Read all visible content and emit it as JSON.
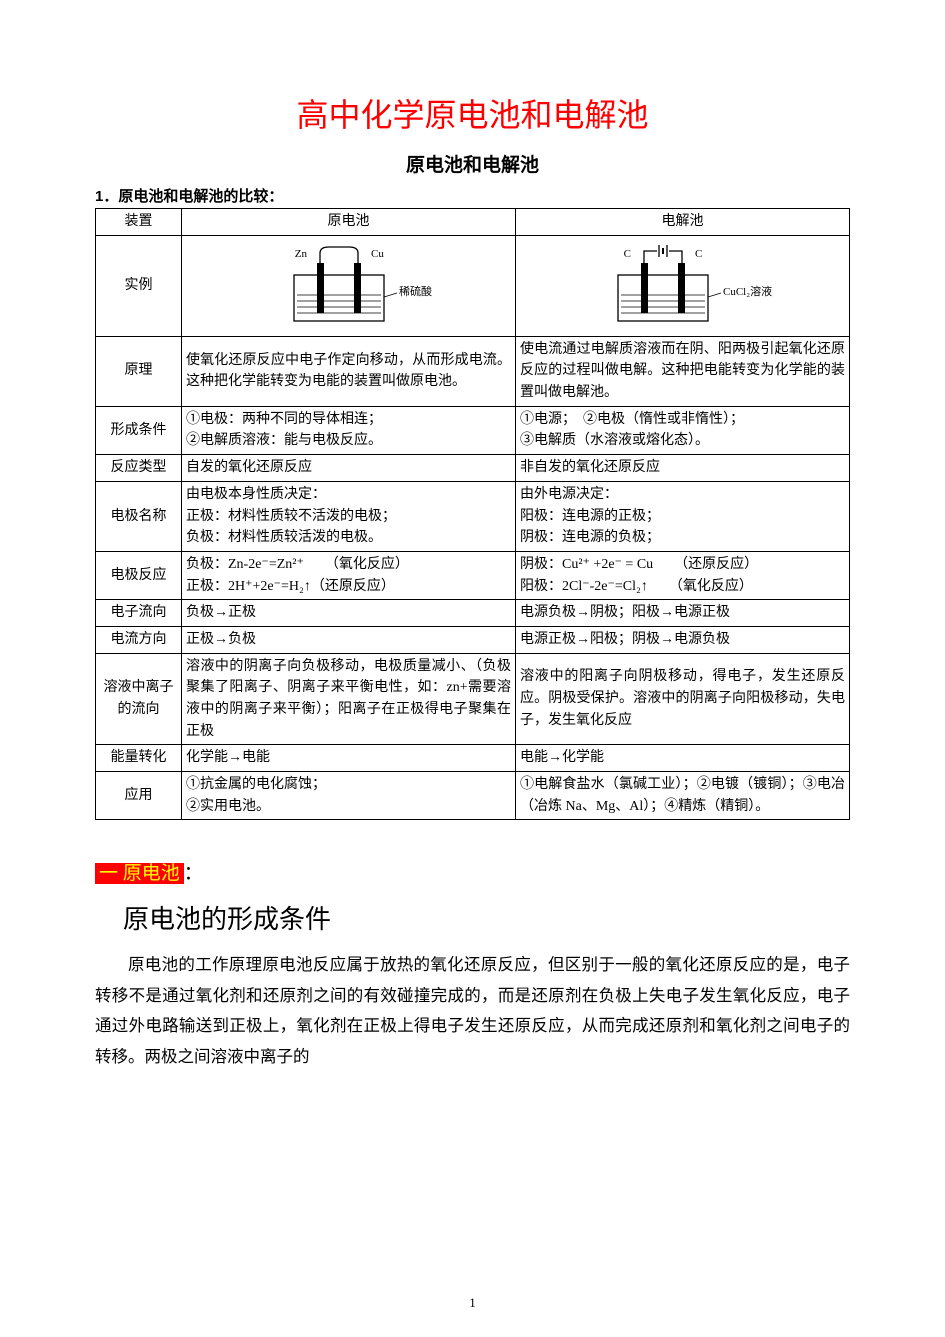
{
  "colors": {
    "title_red": "#ff0000",
    "highlight_bg": "#ff0000",
    "highlight_text": "#ffff00",
    "text": "#000000",
    "bg": "#ffffff",
    "border": "#000000"
  },
  "typography": {
    "title_fontsize": 32,
    "subtitle_fontsize": 19,
    "table_fontsize": 14,
    "body_fontsize": 16.5,
    "heading2_fontsize": 26
  },
  "main_title": "高中化学原电池和电解池",
  "sub_title": "原电池和电解池",
  "section1_label": "1．原电池和电解池的比较：",
  "table": {
    "header": {
      "c0": "装置",
      "c1": "原电池",
      "c2": "电解池"
    },
    "diagram_row_label": "实例",
    "diagram_galvanic": {
      "left_label": "Zn",
      "right_label": "Cu",
      "solution_label": "稀硫酸"
    },
    "diagram_electrolytic": {
      "left_label": "C",
      "right_label": "C",
      "solution_label": "CuCl₂溶液"
    },
    "rows": [
      {
        "h": "原理",
        "a": "使氧化还原反应中电子作定向移动，从而形成电流。这种把化学能转变为电能的装置叫做原电池。",
        "b": "使电流通过电解质溶液而在阴、阳两极引起氧化还原反应的过程叫做电解。这种把电能转变为化学能的装置叫做电解池。"
      },
      {
        "h": "形成条件",
        "a": "①电极：两种不同的导体相连；\n②电解质溶液：能与电极反应。",
        "b": "①电源；　②电极（惰性或非惰性）；\n③电解质（水溶液或熔化态）。"
      },
      {
        "h": "反应类型",
        "a": "自发的氧化还原反应",
        "b": "非自发的氧化还原反应"
      },
      {
        "h": "电极名称",
        "a": "由电极本身性质决定：\n正极：材料性质较不活泼的电极；\n负极：材料性质较活泼的电极。",
        "b": "由外电源决定：\n阳极：连电源的正极；\n阴极：连电源的负极；"
      },
      {
        "h": "电极反应",
        "a": "负极：Zn-2e⁻=Zn²⁺　　（氧化反应）\n正极：2H⁺+2e⁻=H₂↑（还原反应）",
        "b": "阴极：Cu²⁺ +2e⁻ = Cu　　（还原反应）\n阳极：2Cl⁻-2e⁻=Cl₂↑　　（氧化反应）"
      },
      {
        "h": "电子流向",
        "a": "负极→正极",
        "b": "电源负极→阴极；阳极→电源正极"
      },
      {
        "h": "电流方向",
        "a": "正极→负极",
        "b": "电源正极→阳极；阴极→电源负极"
      },
      {
        "h": "溶液中离子的流向",
        "a": "溶液中的阴离子向负极移动，电极质量减小、（负极聚集了阳离子、阴离子来平衡电性，如：zn+需要溶液中的阴离子来平衡）；阳离子在正极得电子聚集在正极",
        "b": "溶液中的阳离子向阴极移动，得电子，发生还原反应。阴极受保护。溶液中的阴离子向阳极移动，失电子，发生氧化反应"
      },
      {
        "h": "能量转化",
        "a": "化学能→电能",
        "b": "电能→化学能"
      },
      {
        "h": "应用",
        "a": "①抗金属的电化腐蚀；\n②实用电池。",
        "b": "①电解食盐水（氯碱工业）；②电镀（镀铜）；③电冶（冶炼 Na、Mg、Al）；④精炼（精铜）。"
      }
    ]
  },
  "section2": {
    "tag": "一 原电池",
    "colon": "：",
    "heading": "原电池的形成条件",
    "paragraph": "原电池的工作原理原电池反应属于放热的氧化还原反应，但区别于一般的氧化还原反应的是，电子转移不是通过氧化剂和还原剂之间的有效碰撞完成的，而是还原剂在负极上失电子发生氧化反应，电子通过外电路输送到正极上，氧化剂在正极上得电子发生还原反应，从而完成还原剂和氧化剂之间电子的转移。两极之间溶液中离子的"
  },
  "page_number": "1"
}
